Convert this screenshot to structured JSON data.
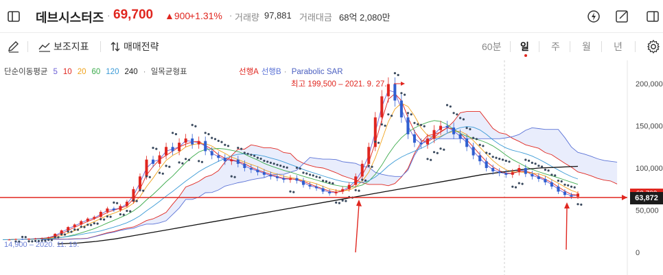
{
  "header": {
    "title": "데브시스터즈",
    "price": "69,700",
    "change": "▲900",
    "change_pct": "+1.31%",
    "volume_label": "거래량",
    "volume_value": "97,881",
    "amount_label": "거래대금",
    "amount_value": "68억 2,080만",
    "accent_up": "#e0261f"
  },
  "toolbar": {
    "indicator_label": "보조지표",
    "strategy_label": "매매전략",
    "periods": [
      "60분",
      "일",
      "주",
      "월",
      "년"
    ],
    "active_period": "일"
  },
  "legend": {
    "ma_label": "단순이동평균",
    "ma_periods": [
      "5",
      "10",
      "20",
      "60",
      "120",
      "240"
    ],
    "ma_colors": [
      "#6b5fd6",
      "#e0261f",
      "#f0a21a",
      "#3aaa4a",
      "#3a9ad6",
      "#222222"
    ],
    "ichimoku_label": "일목균형표",
    "span_a": "선행A",
    "span_b": "선행B",
    "sar_label": "Parabolic SAR"
  },
  "chart_data": {
    "type": "candlestick",
    "y_ticks": [
      "200,000",
      "150,000",
      "100,000",
      "50,000",
      "0"
    ],
    "ylim": [
      0,
      210000
    ],
    "high_annotation": "최고 199,500 – 2021. 9. 27.",
    "high_value": 199500,
    "low_annotation": "14,900 – 2020. 11. 19.",
    "low_value": 14900,
    "current_price_label": "63,872",
    "current_price": 63872,
    "hidden_tag_partial": "69,700",
    "close_series": [
      15000,
      15200,
      15800,
      15500,
      16000,
      16500,
      17000,
      18000,
      22000,
      26000,
      30000,
      33000,
      37000,
      40000,
      42000,
      48000,
      52000,
      50000,
      55000,
      60000,
      75000,
      90000,
      110000,
      105000,
      115000,
      125000,
      120000,
      130000,
      135000,
      128000,
      132000,
      120000,
      115000,
      112000,
      108000,
      110000,
      105000,
      100000,
      98000,
      95000,
      92000,
      90000,
      88000,
      86000,
      88000,
      85000,
      80000,
      78000,
      76000,
      72000,
      70000,
      72000,
      75000,
      80000,
      90000,
      105000,
      125000,
      160000,
      185000,
      199500,
      180000,
      160000,
      140000,
      130000,
      128000,
      135000,
      145000,
      150000,
      148000,
      140000,
      135000,
      125000,
      115000,
      108000,
      100000,
      96000,
      94000,
      92000,
      95000,
      100000,
      93000,
      90000,
      87000,
      83000,
      78000,
      72000,
      68000,
      66000,
      69700
    ],
    "ma240_series": [
      10000,
      11000,
      13000,
      16000,
      20000,
      24000,
      28000,
      32000,
      36000,
      40000,
      44000,
      48000,
      52000,
      56000,
      60000,
      64000,
      68000,
      72000,
      76000,
      80000,
      84000,
      88000,
      92000,
      95000,
      98000,
      100000,
      101000,
      102000
    ],
    "sar_series": [
      130000,
      129000,
      125000,
      121000,
      117000,
      113000,
      110000,
      107000,
      104000,
      101000,
      98000,
      96000,
      94000,
      92000,
      90000,
      88000,
      86000,
      84000,
      82000,
      80000
    ],
    "annotations": [
      "arrow-low-2021",
      "arrow-current"
    ]
  }
}
